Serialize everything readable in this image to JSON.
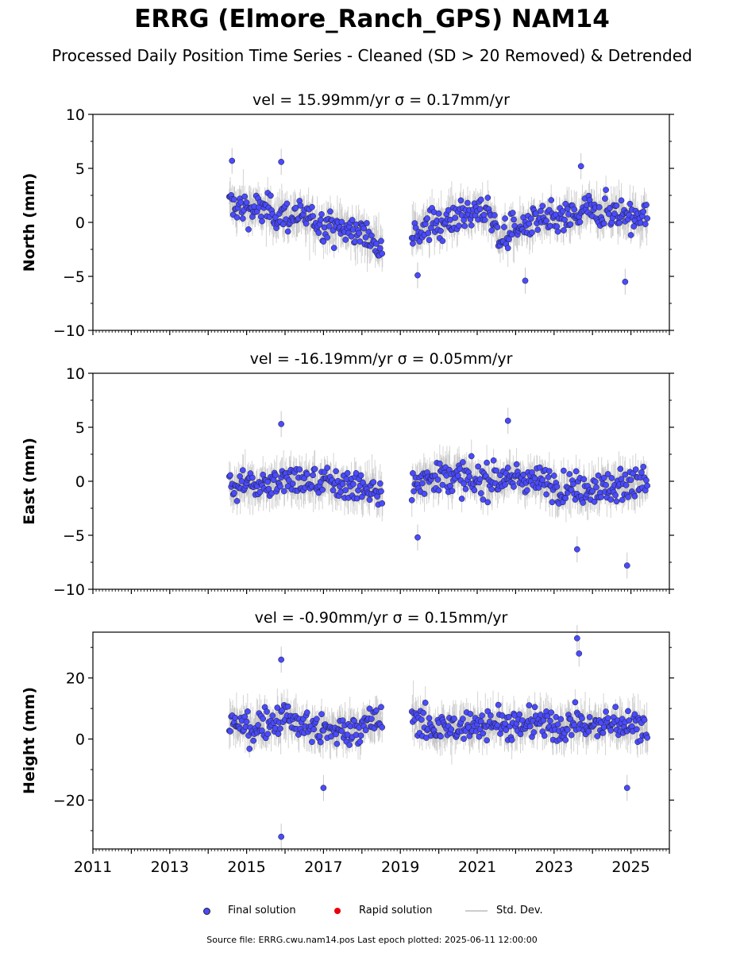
{
  "header": {
    "title": "ERRG (Elmore_Ranch_GPS) NAM14",
    "subtitle": "Processed Daily Position Time Series - Cleaned (SD > 20 Removed) & Detrended"
  },
  "legend": {
    "final_label": "Final solution",
    "rapid_label": "Rapid solution",
    "std_label": "Std. Dev."
  },
  "footer": {
    "text": "Source file: ERRG.cwu.nam14.pos  Last epoch plotted: 2025-06-11 12:00:00"
  },
  "colors": {
    "final": "#4a4aff",
    "rapid": "#e8000b",
    "std": "#b0b0b0"
  },
  "chart_data": [
    {
      "type": "scatter",
      "title": "vel = 15.99mm/yr   σ = 0.17mm/yr",
      "ylabel": "North (mm)",
      "xlim": [
        2011,
        2026
      ],
      "ylim": [
        -10,
        10
      ],
      "yticks": [
        "−10",
        "−5",
        "0",
        "5",
        "10"
      ],
      "xticks": [
        "2011",
        "2013",
        "2015",
        "2017",
        "2019",
        "2021",
        "2023",
        "2025"
      ],
      "grid": false,
      "series": [
        {
          "name": "Final solution",
          "x": [
            2014.55,
            2015.0,
            2015.5,
            2016.0,
            2016.5,
            2017.0,
            2017.5,
            2018.0,
            2018.5,
            2019.3,
            2019.7,
            2020.1,
            2020.6,
            2021.0,
            2021.3,
            2021.6,
            2022.0,
            2022.5,
            2023.0,
            2023.5,
            2023.8,
            2024.2,
            2024.6,
            2025.0,
            2025.45
          ],
          "y": [
            1.6,
            1.4,
            1.0,
            0.7,
            0.3,
            -0.1,
            -0.6,
            -1.1,
            -1.8,
            -1.0,
            -0.5,
            0.2,
            0.7,
            0.9,
            1.0,
            -1.4,
            -0.6,
            0.0,
            0.2,
            0.4,
            1.0,
            1.2,
            0.9,
            0.6,
            0.4
          ]
        }
      ],
      "gaps": [
        [
          2018.55,
          2019.3
        ]
      ],
      "outliers": {
        "x": [
          2014.62,
          2015.9,
          2023.7,
          2024.85,
          2019.45,
          2022.25
        ],
        "y": [
          5.7,
          5.6,
          5.2,
          -5.5,
          -4.9,
          -5.4
        ]
      }
    },
    {
      "type": "scatter",
      "title": "vel = -16.19mm/yr   σ = 0.05mm/yr",
      "ylabel": "East (mm)",
      "xlim": [
        2011,
        2026
      ],
      "ylim": [
        -10,
        10
      ],
      "yticks": [
        "−10",
        "−5",
        "0",
        "5",
        "10"
      ],
      "xticks": [
        "2011",
        "2013",
        "2015",
        "2017",
        "2019",
        "2021",
        "2023",
        "2025"
      ],
      "grid": false,
      "series": [
        {
          "name": "Final solution",
          "x": [
            2014.55,
            2015.0,
            2015.5,
            2016.0,
            2016.5,
            2017.0,
            2017.5,
            2018.0,
            2018.5,
            2019.3,
            2019.7,
            2020.1,
            2020.6,
            2021.0,
            2021.5,
            2022.0,
            2022.5,
            2023.0,
            2023.5,
            2024.0,
            2024.5,
            2025.0,
            2025.45
          ],
          "y": [
            -0.5,
            -0.3,
            -0.2,
            0.0,
            0.0,
            -0.2,
            -0.4,
            -0.6,
            -0.8,
            -0.6,
            0.3,
            0.8,
            0.4,
            -0.1,
            0.1,
            0.3,
            0.0,
            -0.4,
            -0.7,
            -0.6,
            -0.4,
            -0.2,
            -0.2
          ]
        }
      ],
      "gaps": [
        [
          2018.55,
          2019.3
        ]
      ],
      "outliers": {
        "x": [
          2015.9,
          2021.8,
          2024.9,
          2023.6,
          2019.45
        ],
        "y": [
          5.3,
          5.6,
          -7.8,
          -6.3,
          -5.2
        ]
      }
    },
    {
      "type": "scatter",
      "title": "vel = -0.90mm/yr   σ = 0.15mm/yr",
      "ylabel": "Height (mm)",
      "xlim": [
        2011,
        2026
      ],
      "ylim": [
        -36,
        35
      ],
      "yticks": [
        "−20",
        "0",
        "20"
      ],
      "ytick_values": [
        -20,
        0,
        20
      ],
      "xticks": [
        "2011",
        "2013",
        "2015",
        "2017",
        "2019",
        "2021",
        "2023",
        "2025"
      ],
      "grid": false,
      "series": [
        {
          "name": "Final solution",
          "x": [
            2014.55,
            2015.0,
            2015.5,
            2016.0,
            2016.5,
            2017.0,
            2017.5,
            2018.0,
            2018.5,
            2019.3,
            2019.7,
            2020.1,
            2020.6,
            2021.0,
            2021.5,
            2022.0,
            2022.5,
            2023.0,
            2023.5,
            2024.0,
            2024.5,
            2025.0,
            2025.45
          ],
          "y": [
            6,
            4,
            5,
            7,
            4,
            2,
            3,
            4,
            6,
            8,
            4,
            3,
            4,
            5,
            6,
            3,
            6,
            4,
            5,
            4,
            5,
            5,
            4
          ]
        }
      ],
      "gaps": [
        [
          2018.55,
          2019.3
        ]
      ],
      "outliers": {
        "x": [
          2015.9,
          2023.6,
          2023.65,
          2024.9,
          2017.0,
          2015.9
        ],
        "y": [
          26,
          33,
          28,
          -16,
          -16,
          -32
        ]
      }
    }
  ]
}
